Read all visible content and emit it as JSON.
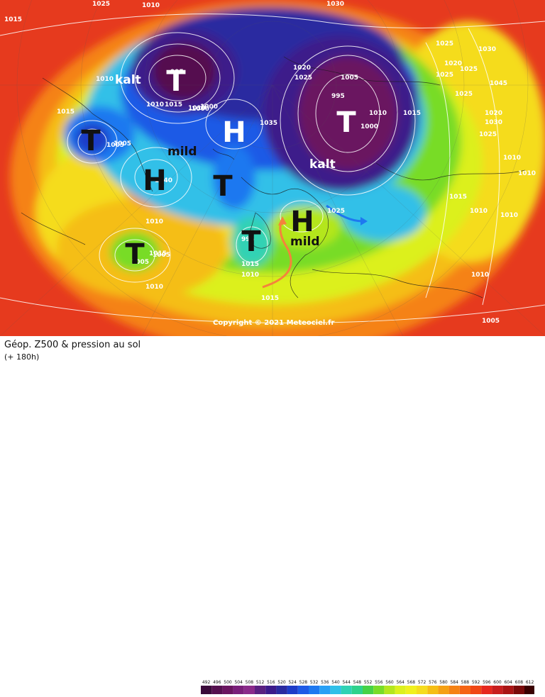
{
  "map": {
    "title": "Géop. Z500 & pression au sol",
    "subtitle": "(+ 180h)",
    "copyright": "Copyright © 2021 Meteociel.fr",
    "centers": [
      {
        "label": "T",
        "kind": "low"
      },
      {
        "label": "T",
        "kind": "low"
      },
      {
        "label": "T",
        "kind": "low"
      },
      {
        "label": "T",
        "kind": "low"
      },
      {
        "label": "T",
        "kind": "low"
      },
      {
        "label": "T",
        "kind": "low"
      },
      {
        "label": "H",
        "kind": "high"
      },
      {
        "label": "H",
        "kind": "high"
      },
      {
        "label": "H",
        "kind": "high"
      }
    ],
    "annotations": [
      "kalt",
      "kalt",
      "mild",
      "mild"
    ],
    "isobar_labels": [
      "1025",
      "1010",
      "1030",
      "1015",
      "1010",
      "995",
      "1020",
      "1025",
      "1010",
      "1015",
      "1010",
      "1000",
      "1035",
      "995",
      "1000",
      "1015",
      "1010",
      "1005",
      "1025",
      "1030",
      "1025",
      "1020",
      "1025",
      "1025",
      "1020",
      "1030",
      "1025",
      "1010",
      "1010",
      "1015",
      "1010",
      "1010",
      "1025",
      "1010",
      "1005",
      "1015",
      "1005",
      "1010",
      "1015",
      "1010",
      "1005",
      "1010",
      "1015",
      "1015",
      "1045",
      "1040",
      "1005",
      "1005",
      "995",
      "1000"
    ],
    "scale_values": [
      "492",
      "496",
      "500",
      "504",
      "508",
      "512",
      "516",
      "520",
      "524",
      "528",
      "532",
      "536",
      "540",
      "544",
      "548",
      "552",
      "556",
      "560",
      "564",
      "568",
      "572",
      "576",
      "580",
      "584",
      "588",
      "592",
      "596",
      "600",
      "604",
      "608",
      "612"
    ],
    "scale_colors": [
      "#3a0a3a",
      "#55104f",
      "#6a1560",
      "#7a1f7a",
      "#8a2a8a",
      "#5a2080",
      "#3c1a8a",
      "#2a2aa0",
      "#1e3cc8",
      "#1e5ae6",
      "#1e78f0",
      "#28a0f5",
      "#30c0e8",
      "#30d2b4",
      "#2ed28c",
      "#46d246",
      "#78dc28",
      "#b4e61e",
      "#dcf01e",
      "#f0f01e",
      "#f5dc1e",
      "#f5be14",
      "#f5a014",
      "#f58214",
      "#f56414",
      "#f04614",
      "#e6281e",
      "#c81e1e",
      "#aa1414",
      "#7a0a0a",
      "#3a0000"
    ]
  }
}
